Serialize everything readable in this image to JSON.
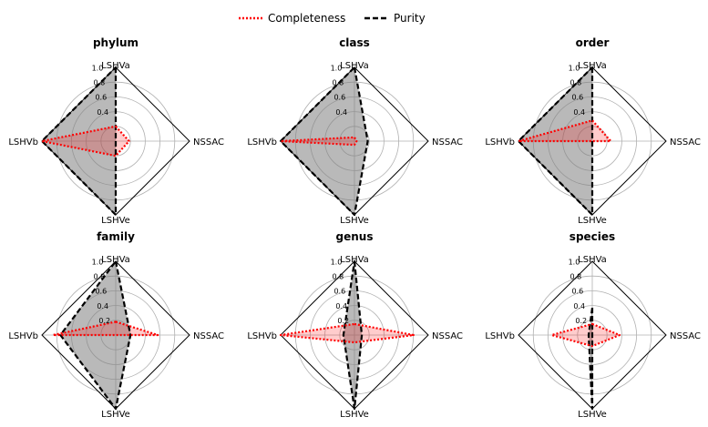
{
  "chart_data": {
    "type": "radar",
    "axes": [
      "LSHVa",
      "NSSAC",
      "LSHVe",
      "LSHVb"
    ],
    "rlim": [
      0,
      1
    ],
    "legend": {
      "placement": "top-center"
    },
    "colors": {
      "completeness": "#ff0000",
      "purity": "#000000",
      "frame": "#000000",
      "grid": "#b0b0b0",
      "fill_purity": "#808080",
      "fill_completeness": "#ff0000"
    },
    "series": [
      {
        "key": "completeness",
        "name": "Completeness",
        "style": "dotted",
        "color": "#ff0000"
      },
      {
        "key": "purity",
        "name": "Purity",
        "style": "dashed",
        "color": "#000000"
      }
    ],
    "panels": [
      {
        "title": "phylum",
        "rticks": [
          "0.4",
          "0.6",
          "0.8",
          "1.0"
        ],
        "completeness": [
          0.2,
          0.18,
          0.2,
          1.0
        ],
        "purity": [
          1.0,
          0.0,
          1.0,
          1.0
        ]
      },
      {
        "title": "class",
        "rticks": [
          "0.4",
          "0.6",
          "0.8",
          "1.0"
        ],
        "completeness": [
          0.05,
          0.03,
          0.05,
          1.0
        ],
        "purity": [
          1.0,
          0.18,
          1.0,
          1.0
        ]
      },
      {
        "title": "order",
        "rticks": [
          "0.4",
          "0.6",
          "0.8",
          "1.0"
        ],
        "completeness": [
          0.28,
          0.25,
          0.0,
          1.0
        ],
        "purity": [
          1.0,
          0.0,
          1.0,
          1.0
        ]
      },
      {
        "title": "family",
        "rticks": [
          "0.2",
          "0.4",
          "0.6",
          "0.8",
          "1.0"
        ],
        "completeness": [
          0.18,
          0.57,
          0.0,
          0.85
        ],
        "purity": [
          1.0,
          0.2,
          1.0,
          0.75
        ]
      },
      {
        "title": "genus",
        "rticks": [
          "0.2",
          "0.4",
          "0.6",
          "0.8",
          "1.0"
        ],
        "completeness": [
          0.15,
          0.8,
          0.1,
          1.0
        ],
        "purity": [
          1.0,
          0.1,
          1.0,
          0.15
        ]
      },
      {
        "title": "species",
        "rticks": [
          "0.2",
          "0.4",
          "0.6",
          "0.8",
          "1.0"
        ],
        "completeness": [
          0.15,
          0.37,
          0.15,
          0.55
        ],
        "purity": [
          0.37,
          0.0,
          1.0,
          0.05
        ]
      }
    ]
  }
}
